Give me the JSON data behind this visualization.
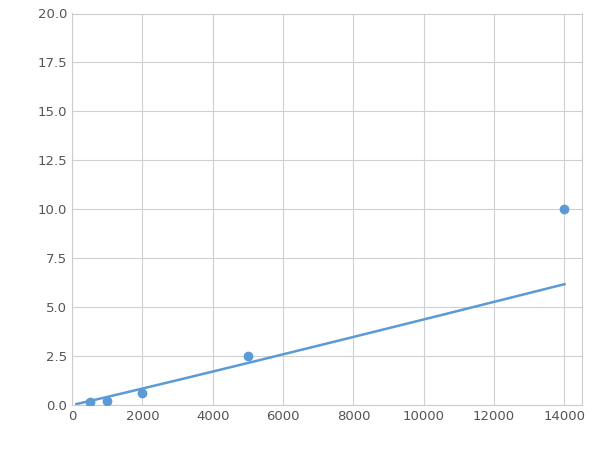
{
  "x_data": [
    125,
    500,
    1000,
    2000,
    5000,
    14000
  ],
  "y_data": [
    0.1,
    0.15,
    0.2,
    0.6,
    2.5,
    10.0
  ],
  "line_color": "#5b9bd5",
  "marker_color": "#5b9bd5",
  "marker_size": 6,
  "linewidth": 1.8,
  "xlim": [
    0,
    14500
  ],
  "ylim": [
    0,
    20.0
  ],
  "xticks": [
    0,
    2000,
    4000,
    6000,
    8000,
    10000,
    12000,
    14000
  ],
  "yticks": [
    0.0,
    2.5,
    5.0,
    7.5,
    10.0,
    12.5,
    15.0,
    17.5,
    20.0
  ],
  "grid_color": "#d0d0d0",
  "background_color": "#ffffff",
  "figsize": [
    6.0,
    4.5
  ],
  "dpi": 100
}
